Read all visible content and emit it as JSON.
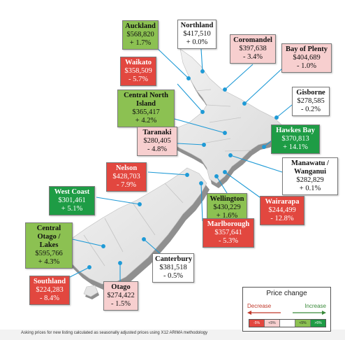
{
  "regions": [
    {
      "id": "auckland",
      "name": "Auckland",
      "price": "$568,820",
      "change": "+ 1.7%",
      "style": "lgreen"
    },
    {
      "id": "northland",
      "name": "Northland",
      "price": "$417,510",
      "change": "+ 0.0%",
      "style": "white"
    },
    {
      "id": "coromandel",
      "name": "Coromandel",
      "price": "$397,638",
      "change": "- 3.4%",
      "style": "pink"
    },
    {
      "id": "bay-of-plenty",
      "name": "Bay of Plenty",
      "price": "$404,689",
      "change": "- 1.0%",
      "style": "pink"
    },
    {
      "id": "waikato",
      "name": "Waikato",
      "price": "$358,509",
      "change": "- 5.7%",
      "style": "red"
    },
    {
      "id": "gisborne",
      "name": "Gisborne",
      "price": "$278,585",
      "change": "- 0.2%",
      "style": "white"
    },
    {
      "id": "central-north-island",
      "name": "Central North Island",
      "price": "$365,417",
      "change": "+ 4.2%",
      "style": "lgreen"
    },
    {
      "id": "hawkes-bay",
      "name": "Hawkes Bay",
      "price": "$370,813",
      "change": "+ 14.1%",
      "style": "dgreen"
    },
    {
      "id": "taranaki",
      "name": "Taranaki",
      "price": "$280,405",
      "change": "- 4.8%",
      "style": "pink"
    },
    {
      "id": "manawatu-wanganui",
      "name": "Manawatu / Wanganui",
      "price": "$282,829",
      "change": "+ 0.1%",
      "style": "white"
    },
    {
      "id": "nelson",
      "name": "Nelson",
      "price": "$428,703",
      "change": "- 7.9%",
      "style": "red"
    },
    {
      "id": "west-coast",
      "name": "West Coast",
      "price": "$301,461",
      "change": "+ 5.1%",
      "style": "dgreen"
    },
    {
      "id": "wellington",
      "name": "Wellington",
      "price": "$430,229",
      "change": "+ 1.6%",
      "style": "lgreen"
    },
    {
      "id": "wairarapa",
      "name": "Wairarapa",
      "price": "$244,499",
      "change": "- 12.8%",
      "style": "red"
    },
    {
      "id": "central-otago-lakes",
      "name": "Central Otago / Lakes",
      "price": "$595,766",
      "change": "+ 4.3%",
      "style": "lgreen"
    },
    {
      "id": "marlborough",
      "name": "Marlborough",
      "price": "$357,641",
      "change": "- 5.3%",
      "style": "red"
    },
    {
      "id": "canterbury",
      "name": "Canterbury",
      "price": "$381,518",
      "change": "- 0.5%",
      "style": "white"
    },
    {
      "id": "southland",
      "name": "Southland",
      "price": "$224,283",
      "change": "- 8.4%",
      "style": "red"
    },
    {
      "id": "otago",
      "name": "Otago",
      "price": "$274,422",
      "change": "- 1.5%",
      "style": "pink"
    }
  ],
  "legend": {
    "title": "Price change",
    "decrease": "Decrease",
    "increase": "Increase",
    "scale": [
      {
        "label": "-5%",
        "color": "#e2473f"
      },
      {
        "label": "<5%",
        "color": "#f7cfcf"
      },
      {
        "label": "",
        "color": "#ffffff"
      },
      {
        "label": "<5%",
        "color": "#8cc152"
      },
      {
        "label": ">5%",
        "color": "#1e9c45"
      }
    ]
  },
  "footer": "Asking prices for new listing calculated as seasonally adjusted prices using X12 ARIMA methodology",
  "colors": {
    "map_top": "#e6e6e6",
    "map_side": "#9a9a9a",
    "leader": "#1f9ad6",
    "red": "#e2473f",
    "pink": "#f7cfcf",
    "light_green": "#8cc152",
    "dark_green": "#1e9c45"
  }
}
